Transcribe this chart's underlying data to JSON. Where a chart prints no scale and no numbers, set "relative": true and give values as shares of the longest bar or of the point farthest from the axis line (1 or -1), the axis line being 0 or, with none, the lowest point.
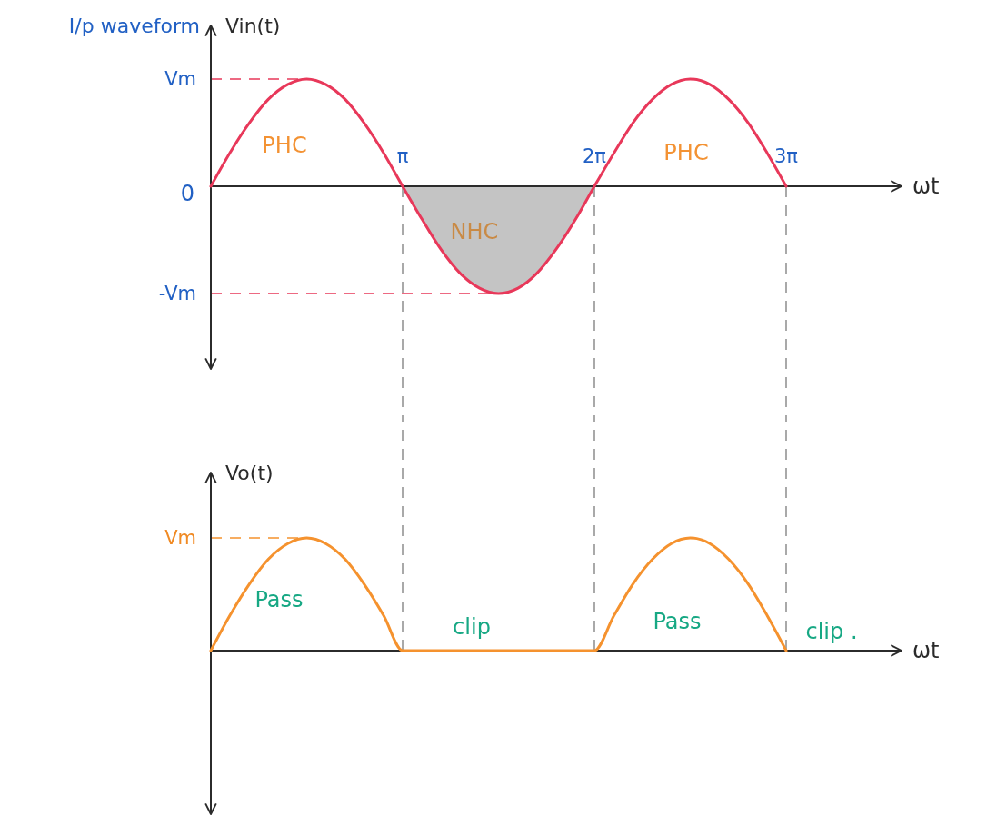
{
  "chart_data": [
    {
      "type": "line",
      "title": "I/p waveform",
      "xlabel": "ωt",
      "ylabel": "Vin(t)",
      "relative": true,
      "xlim": [
        0,
        11.31
      ],
      "xticks": [
        {
          "value": 3.14,
          "label": "π"
        },
        {
          "value": 6.28,
          "label": "2π"
        },
        {
          "value": 9.42,
          "label": "3π"
        }
      ],
      "series": [
        {
          "type": "area",
          "color": "#c4c4c4",
          "x": [
            3.14,
            3.46,
            3.77,
            4.08,
            4.4,
            4.71,
            5.03,
            5.34,
            5.65,
            5.97,
            6.28
          ],
          "values": [
            0,
            -0.31,
            -0.59,
            -0.81,
            -0.95,
            -1,
            -0.95,
            -0.81,
            -0.59,
            -0.31,
            0
          ]
        },
        {
          "color": "#e8385a",
          "x": [
            0,
            0.31,
            0.63,
            0.94,
            1.26,
            1.57,
            1.88,
            2.2,
            2.51,
            2.83,
            3.14,
            3.46,
            3.77,
            4.08,
            4.4,
            4.71,
            5.03,
            5.34,
            5.65,
            5.97,
            6.28,
            6.6,
            6.91,
            7.23,
            7.54,
            7.85,
            8.17,
            8.48,
            8.8,
            9.11,
            9.42
          ],
          "values": [
            0,
            0.31,
            0.59,
            0.81,
            0.95,
            1,
            0.95,
            0.81,
            0.59,
            0.31,
            0,
            -0.31,
            -0.59,
            -0.81,
            -0.95,
            -1,
            -0.95,
            -0.81,
            -0.59,
            -0.31,
            0,
            0.31,
            0.59,
            0.81,
            0.95,
            1,
            0.95,
            0.81,
            0.59,
            0.31,
            0
          ]
        }
      ],
      "ref_lines": [
        {
          "axis": "y",
          "value": 1,
          "label": "Vm",
          "color": "#e8385a",
          "line_style": "dashed"
        },
        {
          "axis": "y",
          "value": -1,
          "label": "-Vm",
          "color": "#e8385a",
          "line_style": "dashed"
        },
        {
          "axis": "x",
          "value": 3.14,
          "color": "#a9a9a9",
          "line_style": "dashed"
        },
        {
          "axis": "x",
          "value": 6.28,
          "color": "#a9a9a9",
          "line_style": "dashed"
        },
        {
          "axis": "x",
          "value": 9.42,
          "color": "#a9a9a9",
          "line_style": "dashed"
        }
      ],
      "annotations": [
        "0",
        "PHC",
        "NHC",
        "PHC"
      ]
    },
    {
      "type": "line",
      "xlabel": "ωt",
      "ylabel": "Vo(t)",
      "relative": true,
      "xlim": [
        0,
        11.31
      ],
      "series": [
        {
          "color": "#f5922e",
          "x": [
            0,
            0.31,
            0.63,
            0.94,
            1.26,
            1.57,
            1.88,
            2.2,
            2.51,
            2.83,
            3.14,
            3.46,
            3.77,
            4.08,
            4.4,
            4.71,
            5.03,
            5.34,
            5.65,
            5.97,
            6.28,
            6.6,
            6.91,
            7.23,
            7.54,
            7.85,
            8.17,
            8.48,
            8.8,
            9.11,
            9.42
          ],
          "values": [
            0,
            0.31,
            0.59,
            0.81,
            0.95,
            1,
            0.95,
            0.81,
            0.59,
            0.31,
            0,
            0,
            0,
            0,
            0,
            0,
            0,
            0,
            0,
            0,
            0,
            0.31,
            0.59,
            0.81,
            0.95,
            1,
            0.95,
            0.81,
            0.59,
            0.31,
            0
          ]
        }
      ],
      "ref_lines": [
        {
          "axis": "y",
          "value": 1,
          "label": "Vm",
          "color": "#f5922e",
          "line_style": "dashed"
        },
        {
          "axis": "x",
          "value": 3.14,
          "color": "#a9a9a9",
          "line_style": "dashed"
        },
        {
          "axis": "x",
          "value": 6.28,
          "color": "#a9a9a9",
          "line_style": "dashed"
        },
        {
          "axis": "x",
          "value": 9.42,
          "color": "#a9a9a9",
          "line_style": "dashed"
        }
      ],
      "annotations": [
        "Pass",
        "clip",
        "Pass",
        "clip ."
      ]
    }
  ]
}
